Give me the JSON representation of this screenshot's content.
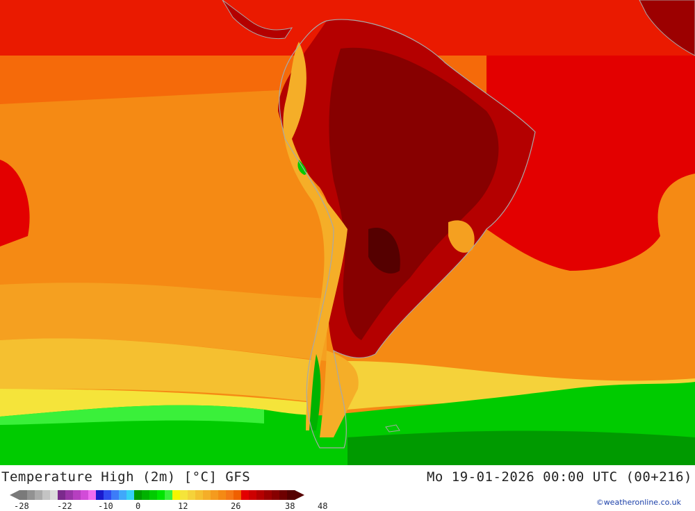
{
  "map": {
    "region": "South America",
    "parameter": "Temperature High (2m)"
  },
  "header": {
    "title": "Temperature High (2m) [°C] GFS",
    "valid_time": "Mo 19-01-2026 00:00 UTC (00+216)"
  },
  "legend": {
    "unit": "°C",
    "colors": [
      "#7a7a7a",
      "#929292",
      "#aaaaaa",
      "#c4c4c4",
      "#dcdcdc",
      "#7b2a8c",
      "#9a35a8",
      "#b63fc0",
      "#d24cd8",
      "#ef6cf0",
      "#1a1acd",
      "#2f4cf0",
      "#3d7cf8",
      "#40a8fa",
      "#36d0f5",
      "#009a00",
      "#00b200",
      "#00cb00",
      "#00e400",
      "#3af03a",
      "#f5f500",
      "#f5e43a",
      "#f5d23a",
      "#f5c030",
      "#f5ae28",
      "#f59b1e",
      "#f58a14",
      "#f57814",
      "#f06000",
      "#e30000",
      "#cd0000",
      "#b40000",
      "#9c0000",
      "#870000",
      "#6e0000",
      "#550000"
    ],
    "ticks": [
      "-28",
      "-22",
      "-10",
      "0",
      "12",
      "26",
      "38",
      "48"
    ]
  },
  "credit": "©weatheronline.co.uk"
}
